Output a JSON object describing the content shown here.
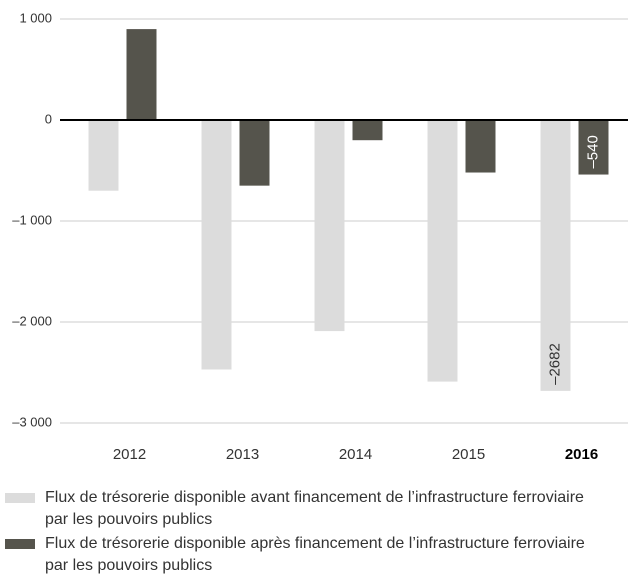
{
  "chart_data": {
    "type": "bar",
    "categories": [
      "2012",
      "2013",
      "2014",
      "2015",
      "2016"
    ],
    "series": [
      {
        "name": "Flux de trésorerie disponible avant financement de l’infrastructure ferroviaire par les pouvoirs publics",
        "color": "#dcdcdc",
        "values": [
          -700,
          -2470,
          -2090,
          -2590,
          -2682
        ],
        "value_labels": [
          null,
          null,
          null,
          null,
          "–2682"
        ]
      },
      {
        "name": "Flux de trésorerie disponible après financement de l’infrastructure ferroviaire par les pouvoirs publics",
        "color": "#55544c",
        "values": [
          900,
          -650,
          -200,
          -520,
          -540
        ],
        "value_labels": [
          null,
          null,
          null,
          null,
          "–540"
        ]
      }
    ],
    "ylim": [
      -3000,
      1000
    ],
    "yticks": [
      {
        "value": -3000,
        "label": "–3 000"
      },
      {
        "value": -2000,
        "label": "–2 000"
      },
      {
        "value": -1000,
        "label": "–1 000"
      },
      0,
      {
        "value": 1000,
        "label": "1 000"
      }
    ],
    "grid": true
  }
}
